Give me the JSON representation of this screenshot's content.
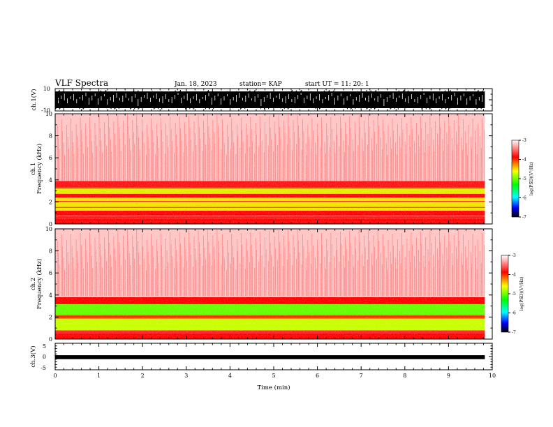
{
  "header": {
    "title": "VLF Spectra",
    "date": "Jan. 18, 2023",
    "station": "station= KAP",
    "start": "start  UT  =   11: 20: 1"
  },
  "chart_data": [
    {
      "type": "line",
      "name": "ch1-waveform",
      "ylabel": "ch.1(V)",
      "ylim": [
        -10,
        10
      ],
      "yticks": [
        10,
        -10
      ],
      "xlim": [
        0,
        10
      ],
      "envelope_hi": [
        9,
        5,
        8,
        3,
        9,
        7,
        4,
        9,
        6,
        8,
        3,
        9,
        5,
        7,
        9,
        4,
        8,
        6,
        9,
        5,
        7,
        3,
        9,
        8,
        5,
        9,
        6,
        4,
        8,
        9,
        7,
        5,
        9,
        3,
        8,
        6,
        9,
        7,
        4,
        9
      ],
      "envelope_lo": [
        -9,
        -6,
        -9,
        -4,
        -8,
        -9,
        -5,
        -9,
        -7,
        -9,
        -5,
        -8,
        -9,
        -6,
        -9,
        -5,
        -8,
        -9,
        -6,
        -9,
        -4,
        -9,
        -8,
        -6,
        -9,
        -7,
        -5,
        -9,
        -8,
        -9,
        -6,
        -9,
        -4,
        -8,
        -9,
        -7,
        -9,
        -5,
        -8,
        -9
      ],
      "data_end_min": 9.83
    },
    {
      "type": "heatmap",
      "name": "ch1-spectrogram",
      "title": "ch.1",
      "ylabel": "Frequency (kHz)",
      "ylim": [
        0,
        10
      ],
      "yticks": [
        0,
        2,
        4,
        6,
        8,
        10
      ],
      "xlim": [
        0,
        10
      ],
      "data_end_min": 9.83,
      "colorbar": {
        "label": "log(PSD)(V²/Hz)",
        "ticks": [
          "-3",
          "-4",
          "-5",
          "-6",
          "-7"
        ],
        "range": [
          -7,
          -3
        ]
      },
      "bands_khz": [
        {
          "from": 0.0,
          "to": 0.5,
          "level": -3.6
        },
        {
          "from": 0.5,
          "to": 0.8,
          "level": -3.4
        },
        {
          "from": 0.8,
          "to": 1.2,
          "level": -3.6
        },
        {
          "from": 1.2,
          "to": 2.4,
          "level": -4.3
        },
        {
          "from": 2.4,
          "to": 2.7,
          "level": -3.6
        },
        {
          "from": 2.7,
          "to": 3.3,
          "level": -4.4
        },
        {
          "from": 3.3,
          "to": 3.9,
          "level": -3.5
        },
        {
          "from": 3.9,
          "to": 10.0,
          "level": -2.8
        }
      ],
      "lines_khz": [
        0.2,
        0.6,
        1.0,
        1.5,
        2.05,
        2.55,
        2.7,
        3.25,
        3.85
      ]
    },
    {
      "type": "heatmap",
      "name": "ch2-spectrogram",
      "title": "ch.2",
      "ylabel": "Frequency (kHz)",
      "ylim": [
        0,
        10
      ],
      "yticks": [
        0,
        2,
        4,
        6,
        8,
        10
      ],
      "xlim": [
        0,
        10
      ],
      "data_end_min": 9.83,
      "colorbar": {
        "label": "log(PSD)(V²/Hz)",
        "ticks": [
          "-3",
          "-4",
          "-5",
          "-6",
          "-7"
        ],
        "range": [
          -7,
          -3
        ]
      },
      "bands_khz": [
        {
          "from": 0.0,
          "to": 0.5,
          "level": -3.6
        },
        {
          "from": 0.5,
          "to": 0.8,
          "level": -3.4
        },
        {
          "from": 0.8,
          "to": 1.9,
          "level": -4.6
        },
        {
          "from": 1.9,
          "to": 2.2,
          "level": -3.8
        },
        {
          "from": 2.2,
          "to": 3.2,
          "level": -4.8
        },
        {
          "from": 3.2,
          "to": 3.8,
          "level": -3.6
        },
        {
          "from": 3.8,
          "to": 10.0,
          "level": -2.8
        }
      ],
      "lines_khz": [
        0.3,
        0.55,
        1.9,
        2.05,
        3.2
      ]
    },
    {
      "type": "line",
      "name": "ch3-waveform",
      "ylabel": "ch.3(V)",
      "ylim": [
        -5,
        5
      ],
      "yticks": [
        5,
        0,
        -5
      ],
      "xlim": [
        0,
        10
      ],
      "band": [
        -1.0,
        0.5
      ],
      "data_end_min": 9.83,
      "xlabel": "Time (min)",
      "xticks": [
        "0",
        "1",
        "2",
        "3",
        "4",
        "5",
        "6",
        "7",
        "8",
        "9",
        "10"
      ]
    }
  ]
}
